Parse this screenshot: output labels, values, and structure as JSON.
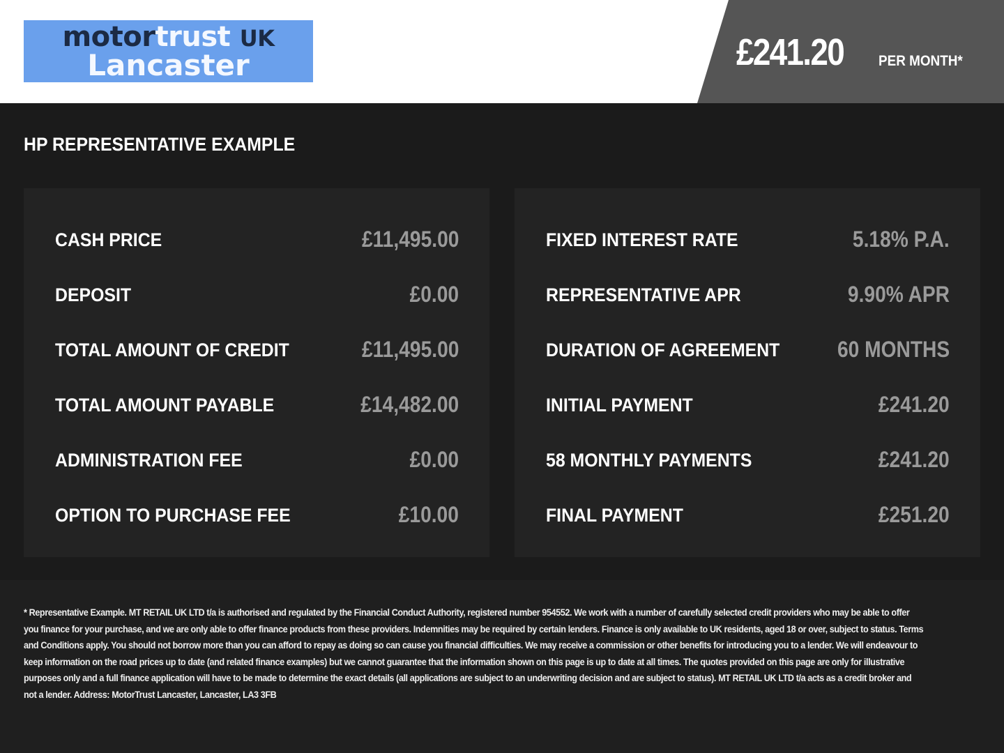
{
  "logo": {
    "word1": "motor",
    "word2": "trust",
    "word3": "UK",
    "line2": "Lancaster"
  },
  "header": {
    "price": "£241.20",
    "per_month": "PER MONTH*"
  },
  "title": "HP REPRESENTATIVE EXAMPLE",
  "left": [
    {
      "label": "CASH PRICE",
      "value": "£11,495.00"
    },
    {
      "label": "DEPOSIT",
      "value": "£0.00"
    },
    {
      "label": "TOTAL AMOUNT OF CREDIT",
      "value": "£11,495.00"
    },
    {
      "label": "TOTAL AMOUNT PAYABLE",
      "value": "£14,482.00"
    },
    {
      "label": "ADMINISTRATION FEE",
      "value": "£0.00"
    },
    {
      "label": "OPTION TO PURCHASE FEE",
      "value": "£10.00"
    }
  ],
  "right": [
    {
      "label": "FIXED INTEREST RATE",
      "value": "5.18% P.A."
    },
    {
      "label": "REPRESENTATIVE APR",
      "value": "9.90% APR"
    },
    {
      "label": "DURATION OF AGREEMENT",
      "value": "60 MONTHS"
    },
    {
      "label": "INITIAL PAYMENT",
      "value": "£241.20"
    },
    {
      "label": "58 MONTHLY PAYMENTS",
      "value": "£241.20"
    },
    {
      "label": "FINAL PAYMENT",
      "value": "£251.20"
    }
  ],
  "disclaimer": "* Representative Example. MT RETAIL UK LTD t/a is authorised and regulated by the Financial Conduct Authority, registered number 954552. We work with a number of carefully selected credit providers who may be able to offer you finance for your purchase, and we are only able to offer finance products from these providers. Indemnities may be required by certain lenders. Finance is only available to UK residents, aged 18 or over, subject to status. Terms and Conditions apply. You should not borrow more than you can afford to repay as doing so can cause you financial difficulties. We may receive a commission or other benefits for introducing you to a lender. We will endeavour to keep information on the road prices up to date (and related finance examples) but we cannot guarantee that the information shown on this page is up to date at all times. The quotes provided on this page are only for illustrative purposes only and a full finance application will have to be made to determine the exact details (all applications are subject to an underwriting decision and are subject to status). MT RETAIL UK LTD t/a acts as a credit broker and not a lender. Address: MotorTrust Lancaster, Lancaster, LA3 3FB"
}
